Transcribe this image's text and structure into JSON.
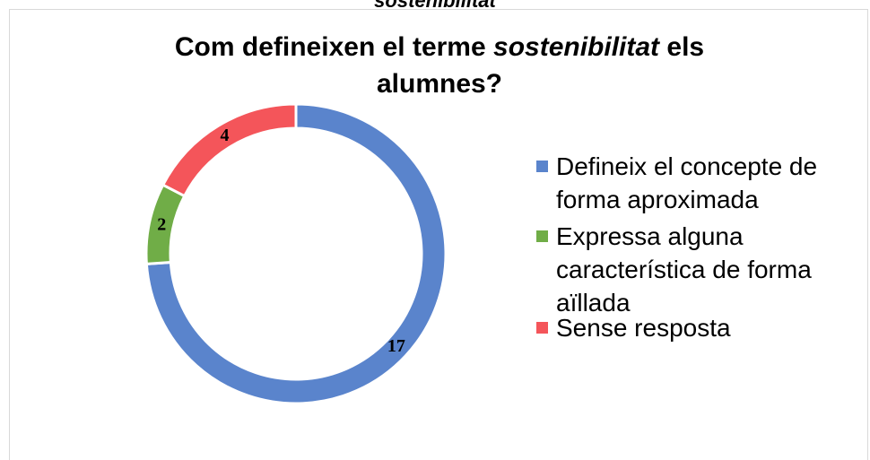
{
  "top_text": "sostenibilitat",
  "chart_data": {
    "type": "donut",
    "title": [
      "Com defineixen el terme",
      "sostenibilitat",
      "els alumnes?"
    ],
    "categories": [
      "Defineix el concepte de forma aproximada",
      "Expressa alguna característica de forma aïllada",
      "Sense resposta"
    ],
    "values": [
      17,
      2,
      4
    ],
    "colors": [
      "#5a84cc",
      "#70ad47",
      "#f4555a"
    ],
    "legend": "right"
  }
}
